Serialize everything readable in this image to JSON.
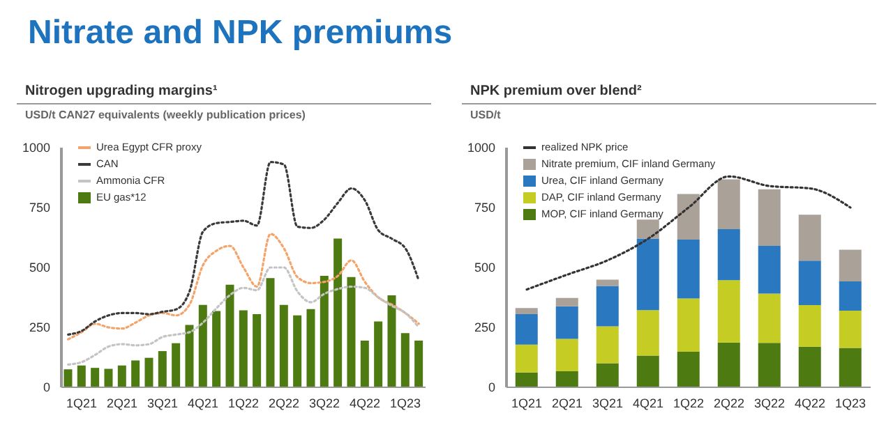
{
  "chart_data": [
    {
      "type": "bar",
      "title": "Nitrogen upgrading margins¹",
      "subtitle": "USD/t CAN27 equivalents (weekly publication prices)",
      "annotations": [
        "Nitrate and NPK premiums"
      ],
      "categories": [
        null,
        "1Q21",
        null,
        null,
        "2Q21",
        null,
        null,
        "3Q21",
        null,
        null,
        "4Q21",
        null,
        null,
        "1Q22",
        null,
        null,
        "2Q22",
        null,
        null,
        "3Q22",
        null,
        null,
        "4Q22",
        null,
        null,
        "1Q23",
        null
      ],
      "series": [
        {
          "name": "Urea Egypt CFR proxy",
          "type": "line",
          "color": "#f4a46a",
          "line_style": "dotted",
          "values": [
            200,
            230,
            265,
            250,
            245,
            270,
            300,
            310,
            300,
            345,
            510,
            570,
            590,
            500,
            420,
            640,
            580,
            460,
            435,
            440,
            465,
            530,
            440,
            375,
            345,
            310,
            265
          ]
        },
        {
          "name": "CAN",
          "type": "line",
          "color": "#3a3a3a",
          "line_style": "dotted",
          "values": [
            220,
            235,
            275,
            300,
            310,
            310,
            305,
            315,
            325,
            400,
            650,
            685,
            690,
            695,
            675,
            940,
            930,
            670,
            665,
            700,
            770,
            830,
            780,
            655,
            620,
            580,
            445
          ]
        },
        {
          "name": "Ammonia CFR",
          "type": "line",
          "color": "#c4c4c4",
          "line_style": "dotted",
          "values": [
            95,
            105,
            135,
            170,
            180,
            175,
            180,
            210,
            220,
            230,
            270,
            330,
            385,
            415,
            405,
            500,
            500,
            400,
            355,
            390,
            410,
            420,
            415,
            375,
            340,
            310,
            250
          ]
        },
        {
          "name": "EU gas*12",
          "type": "bar",
          "color": "#4e7a12",
          "values": [
            75,
            91,
            81,
            77,
            91,
            112,
            123,
            151,
            184,
            260,
            344,
            318,
            428,
            321,
            305,
            456,
            344,
            300,
            326,
            465,
            621,
            460,
            195,
            275,
            384,
            226,
            195
          ]
        }
      ],
      "ylim": [
        0,
        1000
      ],
      "yticks": [
        0,
        250,
        500,
        750,
        1000
      ],
      "legend": "top left",
      "marker": "none"
    },
    {
      "type": "bar",
      "title": "NPK premium over blend²",
      "subtitle": "USD/t",
      "categories": [
        "1Q21",
        "2Q21",
        "3Q21",
        "4Q21",
        "1Q22",
        "2Q22",
        "3Q22",
        "4Q22",
        "1Q23"
      ],
      "stacked": true,
      "series": [
        {
          "name": "MOP, CIF inland Germany",
          "color": "#4e7a12",
          "values": [
            62,
            67,
            100,
            132,
            148,
            187,
            185,
            169,
            164
          ]
        },
        {
          "name": "DAP, CIF inland Germany",
          "color": "#c5cc24",
          "values": [
            116,
            135,
            154,
            190,
            223,
            260,
            206,
            174,
            156
          ]
        },
        {
          "name": "Urea, CIF inland Germany",
          "color": "#2a78bf",
          "values": [
            127,
            136,
            169,
            299,
            245,
            213,
            199,
            185,
            122
          ]
        },
        {
          "name": "Nitrate premium, CIF inland Germany",
          "color": "#aaa198",
          "values": [
            26,
            35,
            26,
            79,
            191,
            208,
            236,
            192,
            132
          ]
        },
        {
          "name": "realized NPK price",
          "type": "line",
          "color": "#333333",
          "line_style": "dotted",
          "values": [
            408,
            470,
            530,
            620,
            750,
            880,
            840,
            830,
            750
          ]
        }
      ],
      "ylim": [
        0,
        1000
      ],
      "yticks": [
        0,
        250,
        500,
        750,
        1000
      ],
      "legend": "top left",
      "marker": "none"
    }
  ]
}
